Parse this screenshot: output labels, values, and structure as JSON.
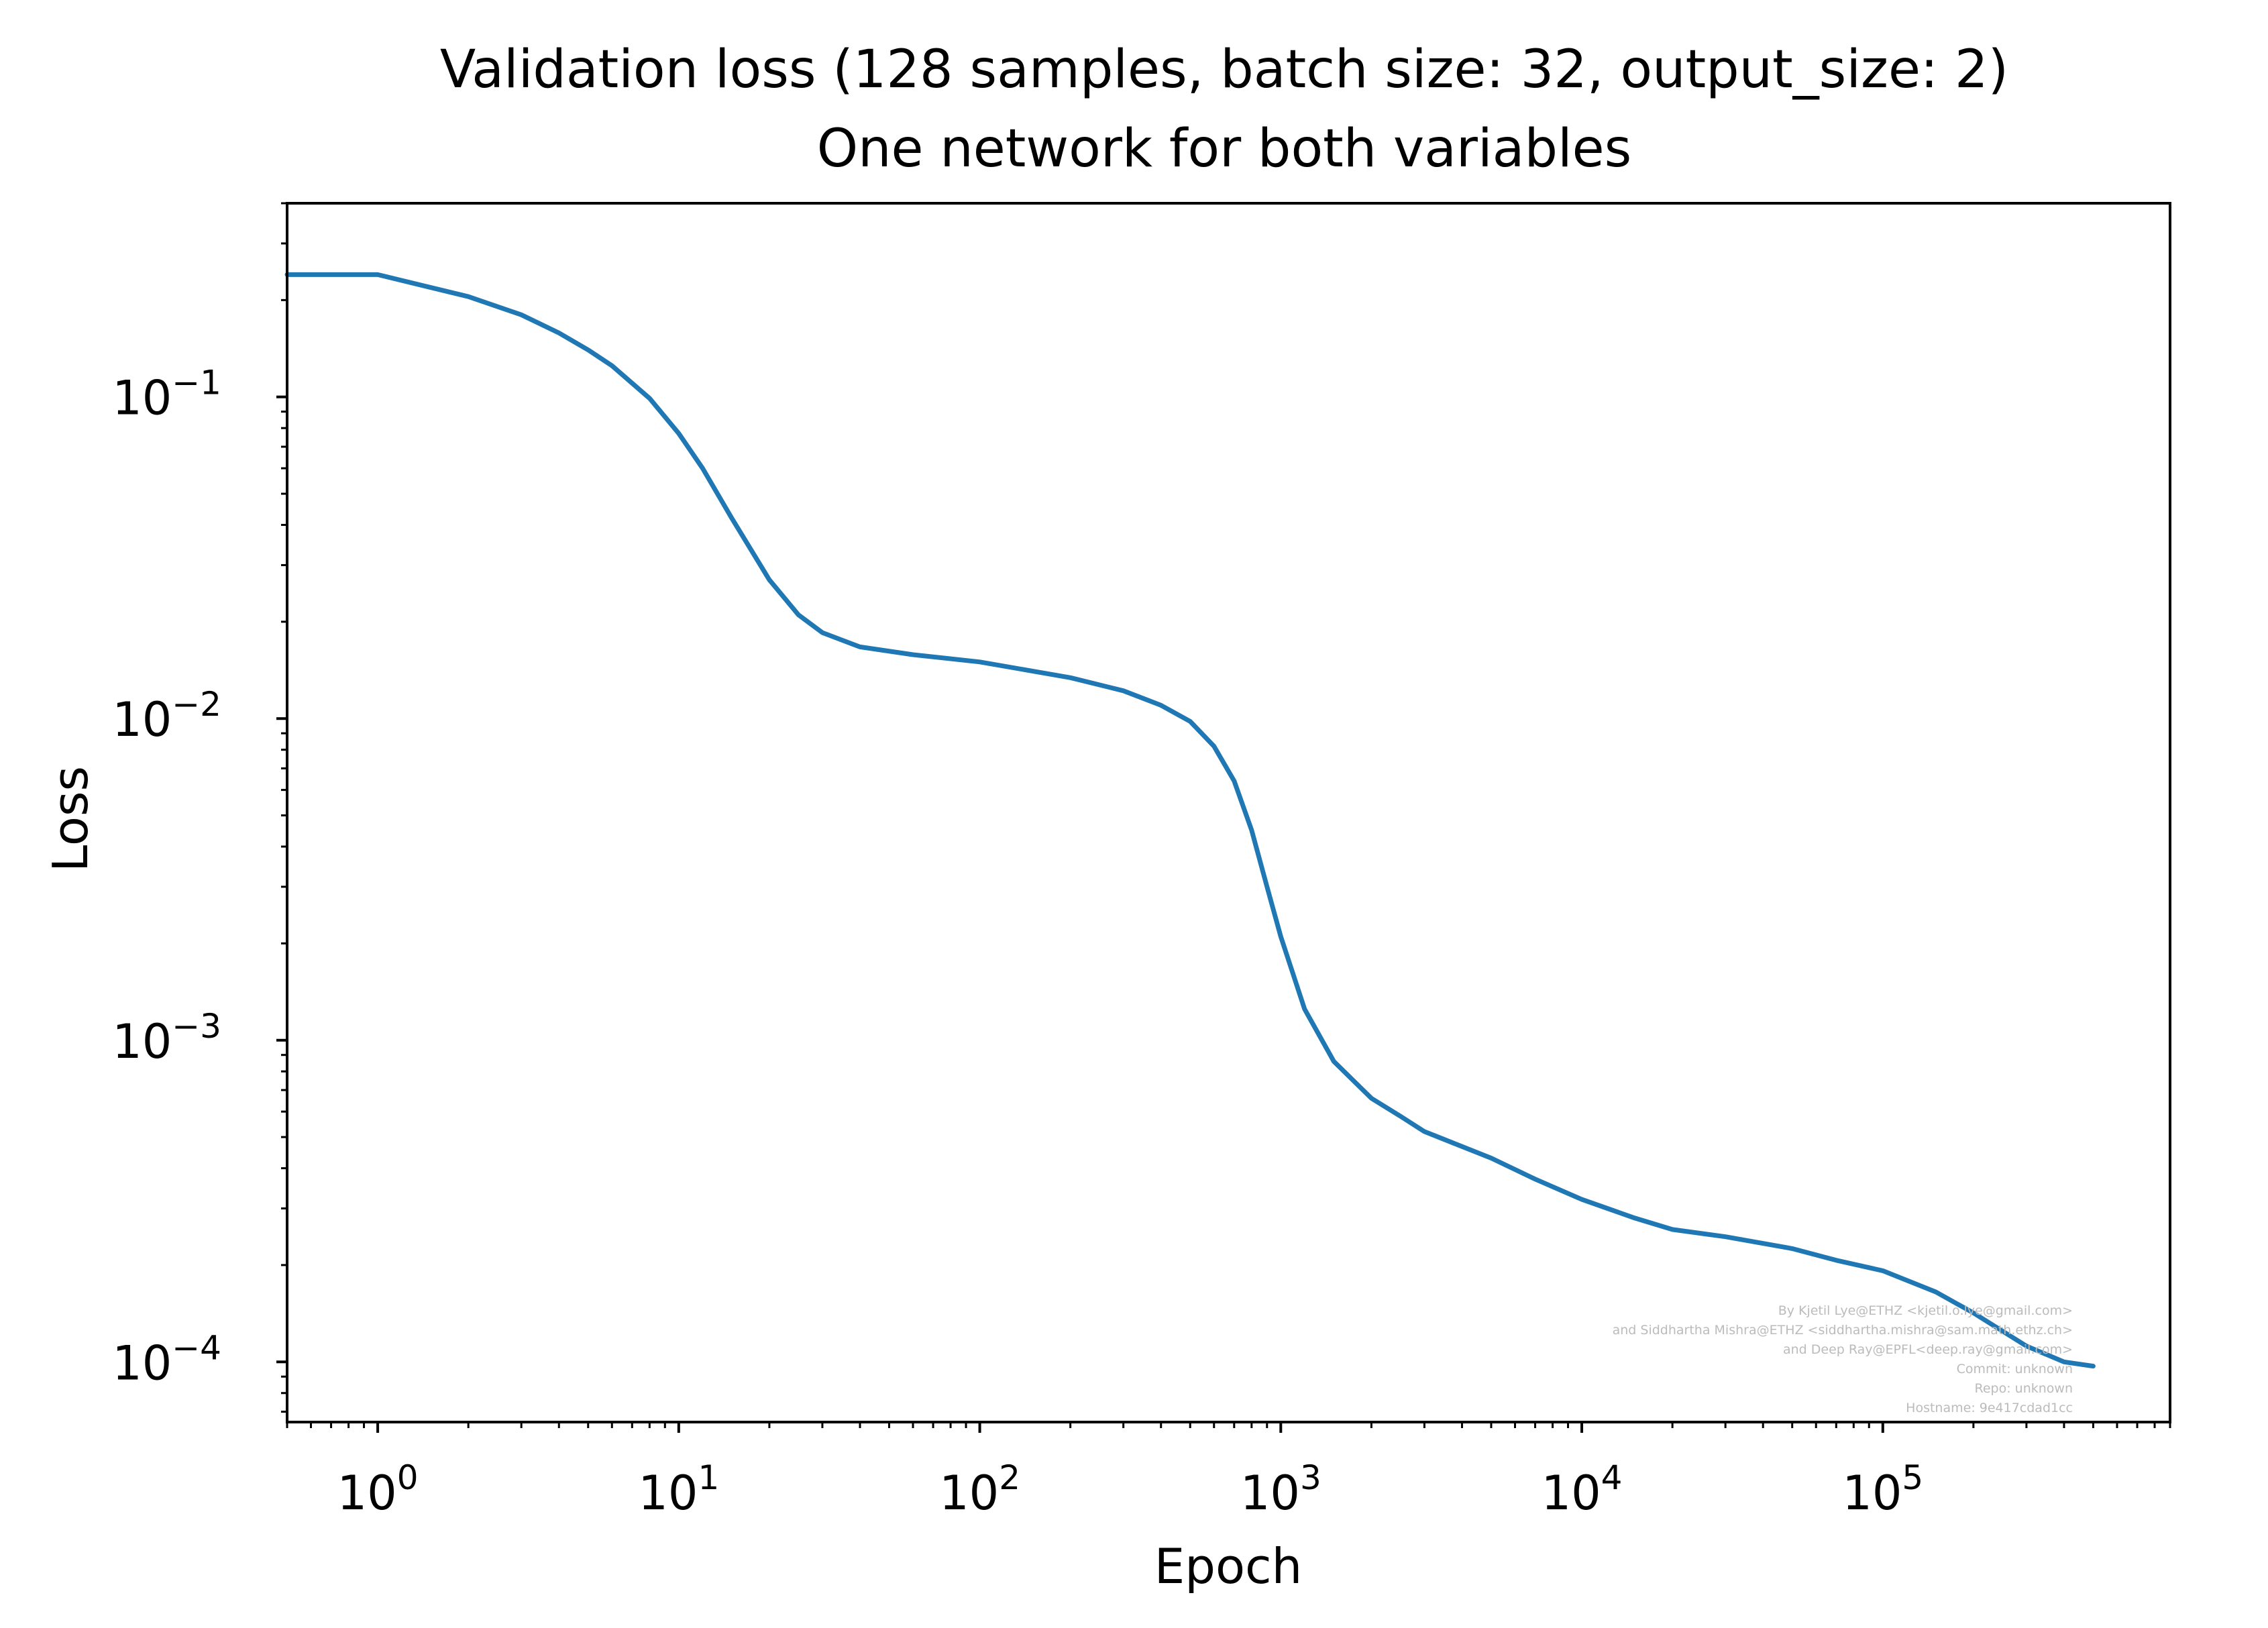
{
  "chart_data": {
    "type": "line",
    "title": "Validation loss (128 samples, batch size: 32, output_size: 2)",
    "subtitle": "One network for both variables",
    "xlabel": "Epoch",
    "ylabel": "Loss",
    "xscale": "log",
    "yscale": "log",
    "xlim": [
      0.5,
      900000
    ],
    "ylim": [
      6.5e-05,
      0.4
    ],
    "grid": false,
    "x_ticks": [
      {
        "value": 1,
        "base": "10",
        "exp": "0"
      },
      {
        "value": 10,
        "base": "10",
        "exp": "1"
      },
      {
        "value": 100,
        "base": "10",
        "exp": "2"
      },
      {
        "value": 1000,
        "base": "10",
        "exp": "3"
      },
      {
        "value": 10000,
        "base": "10",
        "exp": "4"
      },
      {
        "value": 100000,
        "base": "10",
        "exp": "5"
      }
    ],
    "y_ticks": [
      {
        "value": 0.1,
        "base": "10",
        "exp": "−1"
      },
      {
        "value": 0.01,
        "base": "10",
        "exp": "−2"
      },
      {
        "value": 0.001,
        "base": "10",
        "exp": "−3"
      },
      {
        "value": 0.0001,
        "base": "10",
        "exp": "−4"
      }
    ],
    "series": [
      {
        "color": "#1f77b4",
        "x": [
          0.5,
          1,
          2,
          3,
          4,
          5,
          6,
          8,
          10,
          12,
          15,
          20,
          25,
          30,
          40,
          60,
          100,
          200,
          300,
          400,
          500,
          600,
          700,
          800,
          900,
          1000,
          1200,
          1500,
          2000,
          2500,
          3000,
          5000,
          7000,
          10000,
          15000,
          20000,
          30000,
          50000,
          70000,
          100000,
          150000,
          200000,
          300000,
          400000,
          500000
        ],
        "y": [
          0.24,
          0.24,
          0.205,
          0.18,
          0.158,
          0.14,
          0.125,
          0.099,
          0.077,
          0.06,
          0.042,
          0.027,
          0.021,
          0.0185,
          0.0167,
          0.0158,
          0.015,
          0.0134,
          0.0122,
          0.011,
          0.0098,
          0.0082,
          0.0064,
          0.0045,
          0.003,
          0.0021,
          0.00125,
          0.00086,
          0.00066,
          0.00058,
          0.00052,
          0.00043,
          0.00037,
          0.00032,
          0.00028,
          0.000258,
          0.000245,
          0.000225,
          0.000207,
          0.000192,
          0.000165,
          0.000142,
          0.000112,
          0.0001,
          9.7e-05
        ]
      }
    ],
    "annotation_lines": [
      "By Kjetil Lye@ETHZ <kjetil.o.lye@gmail.com>",
      "and Siddhartha Mishra@ETHZ <siddhartha.mishra@sam.math.ethz.ch>",
      "and Deep Ray@EPFL<deep.ray@gmail.com>",
      "Commit: unknown",
      "Repo: unknown",
      "Hostname: 9e417cdad1cc"
    ],
    "colors": {
      "line": "#1f77b4",
      "axes": "#000000",
      "annotation": "#bbbbbb"
    }
  }
}
